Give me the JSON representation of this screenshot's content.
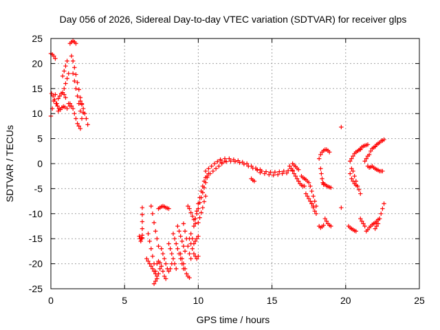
{
  "chart_data": {
    "type": "scatter",
    "title": "Day 056 of 2026, Sidereal Day-to-day VTEC variation (SDTVAR) for receiver glps",
    "xlabel": "GPS time / hours",
    "ylabel": "SDTVAR / TECUs",
    "xlim": [
      0,
      25
    ],
    "ylim": [
      -25,
      25
    ],
    "xticks": [
      0,
      5,
      10,
      15,
      20,
      25
    ],
    "yticks": [
      -25,
      -20,
      -15,
      -10,
      -5,
      0,
      5,
      10,
      15,
      20,
      25
    ],
    "grid": true,
    "marker": "+",
    "color": "#ff0000",
    "segments": [
      {
        "x": [
          0.0,
          0.1,
          0.2,
          0.3,
          0.4,
          0.5
        ],
        "y": [
          9.5,
          11.0,
          12.5,
          13.8,
          12.0,
          10.5
        ]
      },
      {
        "x": [
          0.05,
          0.15,
          0.25,
          0.35,
          0.45,
          0.55,
          0.65,
          0.75,
          0.85,
          0.95
        ],
        "y": [
          14.0,
          13.5,
          12.8,
          12.0,
          11.5,
          11.0,
          10.8,
          11.2,
          11.4,
          11.3
        ]
      },
      {
        "x": [
          0.0,
          0.1,
          0.2,
          0.3
        ],
        "y": [
          22.0,
          21.8,
          21.5,
          21.0
        ]
      },
      {
        "x": [
          0.5,
          0.6,
          0.7,
          0.8,
          0.9,
          1.0
        ],
        "y": [
          13.0,
          13.5,
          14.0,
          14.2,
          13.8,
          13.2
        ]
      },
      {
        "x": [
          0.8,
          0.9,
          1.0,
          1.1
        ],
        "y": [
          17.5,
          18.5,
          19.5,
          20.5
        ]
      },
      {
        "x": [
          0.9,
          1.0,
          1.1,
          1.2
        ],
        "y": [
          15.0,
          16.0,
          17.0,
          18.0
        ]
      },
      {
        "x": [
          1.3,
          1.4,
          1.5,
          1.6,
          1.7
        ],
        "y": [
          24.0,
          24.3,
          24.5,
          24.3,
          24.0
        ]
      },
      {
        "x": [
          1.4,
          1.5,
          1.6,
          1.7,
          1.8,
          1.9,
          2.0,
          2.1,
          2.2
        ],
        "y": [
          21.5,
          20.5,
          19.2,
          17.8,
          16.2,
          14.8,
          13.2,
          11.8,
          10.2
        ]
      },
      {
        "x": [
          1.5,
          1.6,
          1.7,
          1.8,
          1.9,
          2.0,
          2.1
        ],
        "y": [
          18.0,
          16.5,
          15.0,
          13.5,
          12.0,
          10.5,
          9.0
        ]
      },
      {
        "x": [
          1.3,
          1.4,
          1.5,
          1.6,
          1.7,
          1.8,
          1.9,
          2.0
        ],
        "y": [
          12.0,
          11.5,
          11.0,
          10.0,
          9.0,
          8.0,
          7.5,
          7.0
        ]
      },
      {
        "x": [
          2.0,
          2.1,
          2.2,
          2.3,
          2.4,
          2.5
        ],
        "y": [
          12.5,
          12.0,
          11.0,
          10.0,
          9.0,
          7.8
        ]
      },
      {
        "x": [
          1.1,
          1.2,
          1.3
        ],
        "y": [
          11.0,
          12.0,
          11.5
        ]
      },
      {
        "x": [
          6.0,
          6.05,
          6.1,
          6.15,
          6.2
        ],
        "y": [
          -14.5,
          -15.0,
          -15.5,
          -15.0,
          -14.8
        ]
      },
      {
        "x": [
          6.2,
          6.2,
          6.2,
          6.2,
          6.2
        ],
        "y": [
          -8.8,
          -10.2,
          -11.6,
          -13.0,
          -14.3
        ]
      },
      {
        "x": [
          6.8,
          6.9,
          7.0,
          7.1,
          7.2,
          7.3
        ],
        "y": [
          -8.5,
          -10.0,
          -11.8,
          -13.5,
          -15.0,
          -16.5
        ]
      },
      {
        "x": [
          6.5,
          6.6,
          6.7,
          6.8,
          6.9,
          7.0,
          7.1,
          7.2
        ],
        "y": [
          -19.0,
          -19.5,
          -20.0,
          -20.5,
          -21.0,
          -21.5,
          -22.0,
          -22.5
        ]
      },
      {
        "x": [
          6.6,
          6.7,
          6.8,
          6.9,
          7.0,
          7.1,
          7.2
        ],
        "y": [
          -14.0,
          -15.5,
          -17.0,
          -18.5,
          -20.0,
          -21.5,
          -23.0
        ]
      },
      {
        "x": [
          7.0,
          7.1,
          7.2,
          7.3,
          7.4
        ],
        "y": [
          -24.0,
          -23.5,
          -23.0,
          -22.0,
          -21.0
        ]
      },
      {
        "x": [
          7.2,
          7.3,
          7.4,
          7.5,
          7.6,
          7.7,
          7.8
        ],
        "y": [
          -20.0,
          -19.5,
          -19.8,
          -20.5,
          -21.5,
          -22.5,
          -23.0
        ]
      },
      {
        "x": [
          7.3,
          7.4,
          7.5,
          7.6,
          7.7,
          7.8,
          7.9,
          8.0
        ],
        "y": [
          -9.0,
          -8.8,
          -8.6,
          -8.5,
          -8.6,
          -8.8,
          -8.9,
          -9.0
        ]
      },
      {
        "x": [
          7.5,
          7.6,
          7.7,
          7.8,
          7.9,
          8.0,
          8.1,
          8.2
        ],
        "y": [
          -17.0,
          -18.0,
          -19.0,
          -20.0,
          -21.0,
          -21.5,
          -21.0,
          -20.0
        ]
      },
      {
        "x": [
          8.0,
          8.1,
          8.2,
          8.3,
          8.4,
          8.5
        ],
        "y": [
          -16.0,
          -17.0,
          -18.0,
          -19.0,
          -20.0,
          -21.0
        ]
      },
      {
        "x": [
          8.3,
          8.4,
          8.5,
          8.6,
          8.7,
          8.8,
          8.9,
          9.0
        ],
        "y": [
          -14.0,
          -15.0,
          -16.0,
          -17.0,
          -18.0,
          -19.0,
          -20.0,
          -21.0
        ]
      },
      {
        "x": [
          8.6,
          8.7,
          8.8,
          8.9,
          9.0,
          9.1
        ],
        "y": [
          -12.5,
          -13.5,
          -14.5,
          -15.5,
          -16.5,
          -17.5
        ]
      },
      {
        "x": [
          8.8,
          8.9,
          9.0,
          9.1,
          9.2,
          9.3,
          9.4
        ],
        "y": [
          -18.0,
          -19.0,
          -20.0,
          -21.0,
          -22.0,
          -22.5,
          -22.8
        ]
      },
      {
        "x": [
          9.0,
          9.1,
          9.2,
          9.3,
          9.4,
          9.5
        ],
        "y": [
          -12.0,
          -13.5,
          -15.0,
          -16.5,
          -18.0,
          -19.0
        ]
      },
      {
        "x": [
          9.3,
          9.4,
          9.5,
          9.6,
          9.7,
          9.8
        ],
        "y": [
          -8.5,
          -9.0,
          -9.8,
          -10.5,
          -11.2,
          -12.0
        ]
      },
      {
        "x": [
          9.4,
          9.5,
          9.6,
          9.7,
          9.8,
          9.9,
          10.0
        ],
        "y": [
          -15.0,
          -16.0,
          -17.0,
          -18.0,
          -18.5,
          -19.0,
          -18.5
        ]
      },
      {
        "x": [
          9.5,
          9.6,
          9.7,
          9.8,
          9.9,
          10.0
        ],
        "y": [
          -14.0,
          -15.0,
          -16.0,
          -15.5,
          -15.0,
          -14.5
        ]
      },
      {
        "x": [
          9.7,
          9.8,
          9.9,
          10.0,
          10.1,
          10.2,
          10.3,
          10.4,
          10.5
        ],
        "y": [
          -12.5,
          -11.0,
          -9.5,
          -8.0,
          -6.8,
          -5.5,
          -4.5,
          -3.5,
          -2.8
        ]
      },
      {
        "x": [
          9.8,
          9.9,
          10.0,
          10.1,
          10.2,
          10.3,
          10.4,
          10.5,
          10.6,
          10.7
        ],
        "y": [
          -11.0,
          -10.0,
          -9.0,
          -7.8,
          -6.8,
          -5.8,
          -4.8,
          -3.8,
          -2.8,
          -2.0
        ]
      },
      {
        "x": [
          10.0,
          10.1,
          10.2,
          10.3,
          10.4,
          10.5
        ],
        "y": [
          -11.8,
          -10.8,
          -9.8,
          -8.8,
          -7.6,
          -6.5
        ]
      },
      {
        "x": [
          10.5,
          10.7,
          10.9,
          11.1,
          11.3,
          11.5
        ],
        "y": [
          -1.5,
          -1.0,
          -0.5,
          0.0,
          0.4,
          0.7
        ]
      },
      {
        "x": [
          10.6,
          10.8,
          11.0,
          11.2,
          11.4,
          11.6,
          11.8
        ],
        "y": [
          -2.5,
          -2.0,
          -1.5,
          -1.0,
          -0.5,
          0.0,
          0.5
        ]
      },
      {
        "x": [
          11.5,
          11.8,
          12.1,
          12.4,
          12.7,
          13.0,
          13.3,
          13.6,
          13.9,
          14.2
        ],
        "y": [
          0.8,
          1.0,
          1.0,
          0.8,
          0.6,
          0.3,
          0.0,
          -0.5,
          -0.9,
          -1.2
        ]
      },
      {
        "x": [
          11.6,
          11.9,
          12.2,
          12.5,
          12.8,
          13.1,
          13.4,
          13.7,
          14.0
        ],
        "y": [
          0.2,
          0.4,
          0.5,
          0.4,
          0.2,
          -0.1,
          -0.5,
          -0.9,
          -1.2
        ]
      },
      {
        "x": [
          14.0,
          14.3,
          14.6,
          14.9,
          15.2,
          15.5,
          15.8,
          16.1,
          16.4
        ],
        "y": [
          -1.3,
          -1.5,
          -1.6,
          -1.7,
          -1.7,
          -1.6,
          -1.5,
          -1.4,
          -1.3
        ]
      },
      {
        "x": [
          14.2,
          14.5,
          14.8,
          15.1,
          15.4,
          15.7,
          16.0
        ],
        "y": [
          -1.8,
          -2.0,
          -2.2,
          -2.3,
          -2.2,
          -2.0,
          -1.9
        ]
      },
      {
        "x": [
          13.6,
          13.7,
          13.8
        ],
        "y": [
          -3.0,
          -3.3,
          -3.5
        ]
      },
      {
        "x": [
          16.2,
          16.3,
          16.4,
          16.5,
          16.6,
          16.7,
          16.8,
          16.9,
          17.0,
          17.1,
          17.2
        ],
        "y": [
          -0.5,
          -1.0,
          -1.5,
          -2.0,
          -2.5,
          -3.0,
          -3.5,
          -4.0,
          -4.3,
          -4.5,
          -4.5
        ]
      },
      {
        "x": [
          16.4,
          16.5,
          16.6,
          16.7,
          16.8
        ],
        "y": [
          0.0,
          -0.3,
          -0.6,
          -0.9,
          -1.2
        ]
      },
      {
        "x": [
          17.0,
          17.1,
          17.2,
          17.3,
          17.4,
          17.5
        ],
        "y": [
          -2.5,
          -2.8,
          -3.0,
          -3.2,
          -3.5,
          -3.8
        ]
      },
      {
        "x": [
          17.3,
          17.4,
          17.5,
          17.6,
          17.7,
          17.8
        ],
        "y": [
          -6.0,
          -6.5,
          -7.0,
          -7.5,
          -8.0,
          -8.5
        ]
      },
      {
        "x": [
          17.6,
          17.7,
          17.8,
          17.9,
          18.0
        ],
        "y": [
          -4.5,
          -5.5,
          -6.5,
          -7.5,
          -8.5
        ]
      },
      {
        "x": [
          17.7,
          17.8,
          17.9,
          18.0
        ],
        "y": [
          -8.0,
          -8.8,
          -9.5,
          -10.0
        ]
      },
      {
        "x": [
          18.2,
          18.3,
          18.4,
          18.5
        ],
        "y": [
          -12.5,
          -12.8,
          -12.6,
          -12.3
        ]
      },
      {
        "x": [
          18.6,
          18.7,
          18.8,
          18.9,
          19.0
        ],
        "y": [
          -11.0,
          -11.5,
          -12.0,
          -12.3,
          -12.5
        ]
      },
      {
        "x": [
          18.2,
          18.3,
          18.4,
          18.5,
          18.6,
          18.7,
          18.8,
          18.9
        ],
        "y": [
          1.0,
          1.8,
          2.3,
          2.6,
          2.8,
          2.8,
          2.6,
          2.3
        ]
      },
      {
        "x": [
          18.3,
          18.35,
          18.4,
          18.45,
          18.5
        ],
        "y": [
          -1.0,
          -2.0,
          -3.0,
          -3.8,
          -4.2
        ]
      },
      {
        "x": [
          18.5,
          18.6,
          18.7,
          18.8,
          18.9,
          19.0
        ],
        "y": [
          -4.0,
          -4.2,
          -4.4,
          -4.6,
          -4.7,
          -4.8
        ]
      },
      {
        "x": [
          19.7
        ],
        "y": [
          7.3
        ]
      },
      {
        "x": [
          19.7
        ],
        "y": [
          -8.8
        ]
      },
      {
        "x": [
          20.3,
          20.4,
          20.5,
          20.6,
          20.7,
          20.8,
          20.9,
          21.0
        ],
        "y": [
          0.5,
          1.0,
          1.5,
          2.0,
          2.3,
          2.5,
          2.7,
          2.8
        ]
      },
      {
        "x": [
          20.3,
          20.4,
          20.5,
          20.6,
          20.7,
          20.8,
          20.9,
          21.0
        ],
        "y": [
          -2.0,
          -3.0,
          -3.5,
          -4.0,
          -4.3,
          -4.5,
          -5.2,
          -6.0
        ]
      },
      {
        "x": [
          20.4,
          20.5,
          20.6,
          20.7,
          20.8
        ],
        "y": [
          -1.0,
          -1.5,
          -2.5,
          -3.5,
          -4.5
        ]
      },
      {
        "x": [
          20.2,
          20.3,
          20.4,
          20.5,
          20.6,
          20.7
        ],
        "y": [
          -12.5,
          -12.8,
          -13.0,
          -13.2,
          -13.4,
          -13.5
        ]
      },
      {
        "x": [
          21.0,
          21.1,
          21.2,
          21.3
        ],
        "y": [
          -11.0,
          -11.5,
          -12.0,
          -12.5
        ]
      },
      {
        "x": [
          21.0,
          21.1,
          21.2,
          21.3,
          21.4,
          21.5
        ],
        "y": [
          3.0,
          3.3,
          3.5,
          3.6,
          3.7,
          3.8
        ]
      },
      {
        "x": [
          21.3,
          21.4,
          21.5
        ],
        "y": [
          0.5,
          1.0,
          1.5
        ]
      },
      {
        "x": [
          21.5,
          21.6,
          21.7,
          21.8,
          21.9,
          22.0,
          22.1,
          22.2,
          22.3,
          22.4,
          22.5
        ],
        "y": [
          -0.5,
          -0.8,
          -0.7,
          -0.5,
          -0.8,
          -1.0,
          -1.2,
          -1.3,
          -1.5,
          -1.5,
          -1.5
        ]
      },
      {
        "x": [
          21.6,
          21.7,
          21.8,
          21.9,
          22.0
        ],
        "y": [
          1.8,
          2.5,
          3.0,
          3.2,
          3.4
        ]
      },
      {
        "x": [
          21.4,
          21.5,
          21.6,
          21.7,
          21.8,
          21.9,
          22.0,
          22.1,
          22.2,
          22.3
        ],
        "y": [
          -13.5,
          -13.2,
          -12.8,
          -12.5,
          -12.2,
          -12.0,
          -11.8,
          -11.5,
          -11.2,
          -11.0
        ]
      },
      {
        "x": [
          22.0,
          22.1,
          22.2,
          22.3,
          22.4,
          22.5,
          22.6
        ],
        "y": [
          3.5,
          3.8,
          4.0,
          4.2,
          4.5,
          4.6,
          4.8
        ]
      },
      {
        "x": [
          22.0,
          22.1,
          22.2,
          22.3,
          22.4,
          22.5,
          22.6
        ],
        "y": [
          -13.0,
          -12.5,
          -12.0,
          -11.0,
          -10.0,
          -9.0,
          -8.0
        ]
      }
    ]
  }
}
